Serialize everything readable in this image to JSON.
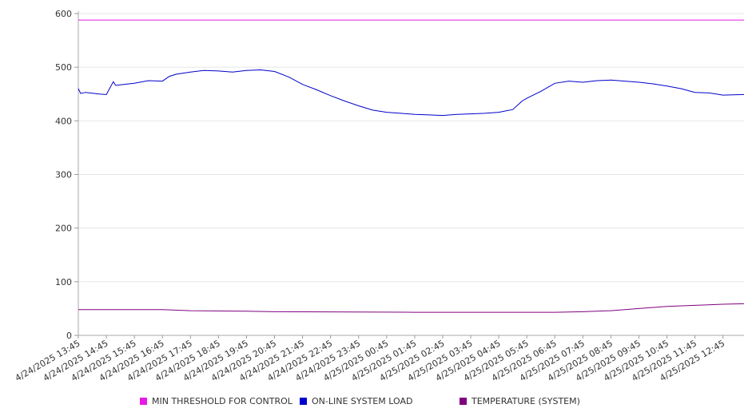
{
  "chart_data": {
    "type": "line",
    "ylim": [
      0,
      600
    ],
    "y_ticks": [
      "0",
      "100",
      "200",
      "300",
      "400",
      "500",
      "600"
    ],
    "grid": true,
    "x_tick_labels": [
      "4/24/2025 13:45",
      "4/24/2025 14:45",
      "4/24/2025 15:45",
      "4/24/2025 16:45",
      "4/24/2025 17:45",
      "4/24/2025 18:45",
      "4/24/2025 19:45",
      "4/24/2025 20:45",
      "4/24/2025 21:45",
      "4/24/2025 22:45",
      "4/24/2025 23:45",
      "4/25/2025 00:45",
      "4/25/2025 01:45",
      "4/25/2025 02:45",
      "4/25/2025 03:45",
      "4/25/2025 04:45",
      "4/25/2025 05:45",
      "4/25/2025 06:45",
      "4/25/2025 07:45",
      "4/25/2025 08:45",
      "4/25/2025 09:45",
      "4/25/2025 10:45",
      "4/25/2025 11:45",
      "4/25/2025 12:45"
    ],
    "series": [
      {
        "name": "MIN THRESHOLD FOR CONTROL",
        "color": "#e619e6",
        "x": [
          "4/24/2025 13:45",
          "4/25/2025 13:30"
        ],
        "values": [
          588,
          588
        ]
      },
      {
        "name": "ON-LINE SYSTEM LOAD",
        "color": "#0000cc",
        "x": [
          "4/24/2025 13:45",
          "4/24/2025 13:50",
          "4/24/2025 14:00",
          "4/24/2025 14:30",
          "4/24/2025 14:45",
          "4/24/2025 15:00",
          "4/24/2025 15:05",
          "4/24/2025 15:15",
          "4/24/2025 15:45",
          "4/24/2025 16:15",
          "4/24/2025 16:45",
          "4/24/2025 17:00",
          "4/24/2025 17:15",
          "4/24/2025 17:45",
          "4/24/2025 18:15",
          "4/24/2025 18:45",
          "4/24/2025 19:15",
          "4/24/2025 19:45",
          "4/24/2025 20:15",
          "4/24/2025 20:45",
          "4/24/2025 21:15",
          "4/24/2025 21:45",
          "4/24/2025 22:15",
          "4/24/2025 22:45",
          "4/24/2025 23:15",
          "4/24/2025 23:45",
          "4/25/2025 00:15",
          "4/25/2025 00:45",
          "4/25/2025 01:15",
          "4/25/2025 01:45",
          "4/25/2025 02:15",
          "4/25/2025 02:45",
          "4/25/2025 03:15",
          "4/25/2025 03:45",
          "4/25/2025 04:15",
          "4/25/2025 04:45",
          "4/25/2025 05:15",
          "4/25/2025 05:30",
          "4/25/2025 05:35",
          "4/25/2025 05:45",
          "4/25/2025 06:15",
          "4/25/2025 06:45",
          "4/25/2025 07:15",
          "4/25/2025 07:45",
          "4/25/2025 08:15",
          "4/25/2025 08:45",
          "4/25/2025 09:15",
          "4/25/2025 09:45",
          "4/25/2025 10:15",
          "4/25/2025 10:45",
          "4/25/2025 11:15",
          "4/25/2025 11:45",
          "4/25/2025 12:15",
          "4/25/2025 12:45",
          "4/25/2025 13:30"
        ],
        "values": [
          460,
          451,
          453,
          450,
          449,
          473,
          466,
          467,
          470,
          475,
          474,
          483,
          487,
          491,
          494,
          493,
          491,
          494,
          495,
          492,
          482,
          468,
          458,
          447,
          437,
          428,
          420,
          416,
          414,
          412,
          411,
          410,
          412,
          413,
          414,
          416,
          421,
          433,
          437,
          442,
          455,
          470,
          474,
          472,
          475,
          476,
          474,
          472,
          469,
          465,
          460,
          453,
          452,
          448,
          449
        ]
      },
      {
        "name": "TEMPERATURE (SYSTEM)",
        "color": "#800080",
        "x": [
          "4/24/2025 13:45",
          "4/24/2025 16:45",
          "4/24/2025 17:45",
          "4/24/2025 19:45",
          "4/24/2025 20:45",
          "4/25/2025 01:45",
          "4/25/2025 05:45",
          "4/25/2025 06:45",
          "4/25/2025 07:45",
          "4/25/2025 08:45",
          "4/25/2025 09:45",
          "4/25/2025 10:45",
          "4/25/2025 11:45",
          "4/25/2025 12:45",
          "4/25/2025 13:30"
        ],
        "values": [
          48,
          48,
          46,
          45,
          44,
          43,
          43,
          43,
          44,
          46,
          50,
          54,
          56,
          58,
          59
        ]
      }
    ]
  }
}
